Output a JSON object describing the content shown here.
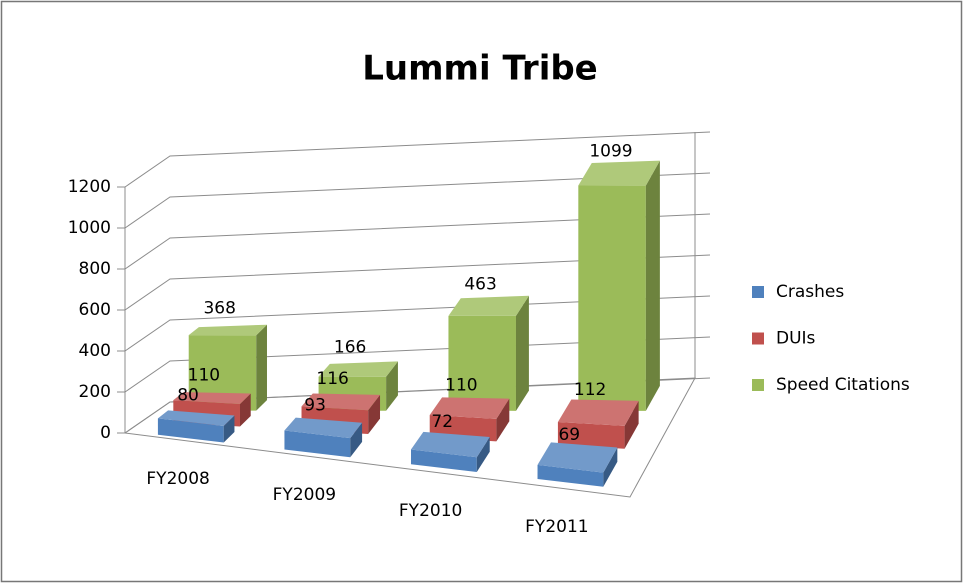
{
  "chart_data": {
    "type": "bar3d",
    "title": "Lummi Tribe",
    "categories": [
      "FY2008",
      "FY2009",
      "FY2010",
      "FY2011"
    ],
    "series": [
      {
        "name": "Crashes",
        "color": "#4f81bd",
        "values": [
          80,
          93,
          72,
          69
        ]
      },
      {
        "name": "DUIs",
        "color": "#c0504d",
        "values": [
          110,
          116,
          110,
          112
        ]
      },
      {
        "name": "Speed Citations",
        "color": "#9bbb59",
        "values": [
          368,
          166,
          463,
          1099
        ]
      }
    ],
    "ylim": [
      0,
      1200
    ],
    "yticks": [
      0,
      200,
      400,
      600,
      800,
      1000,
      1200
    ],
    "grid": true,
    "legend": "right"
  }
}
